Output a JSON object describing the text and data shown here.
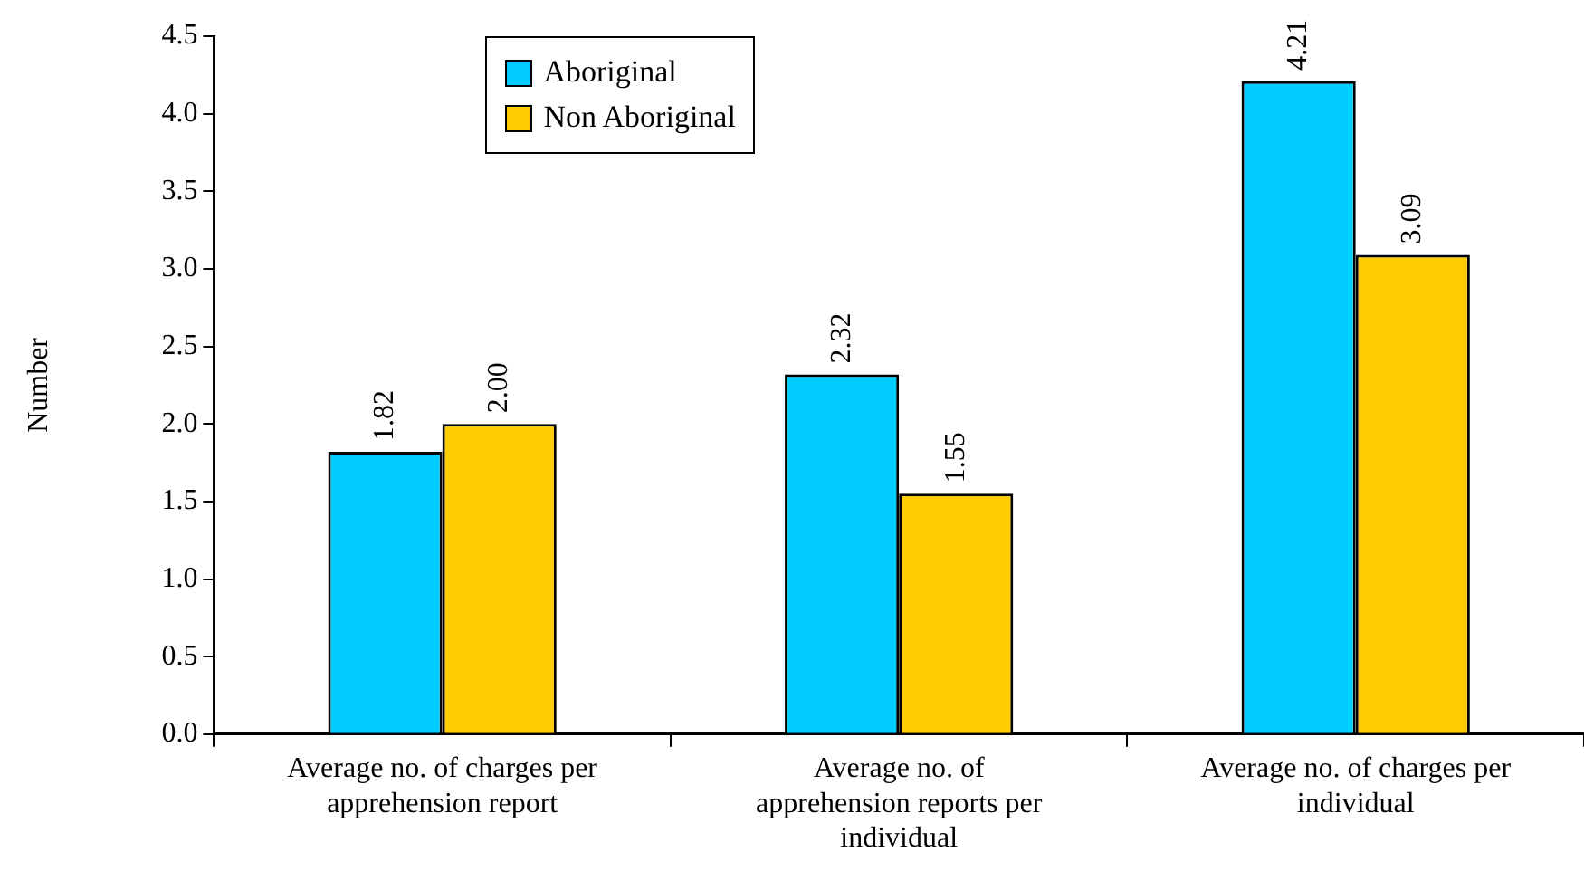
{
  "chart_data": {
    "type": "bar",
    "ylabel": "Number",
    "categories": [
      "Average no. of charges per apprehension report",
      "Average no. of apprehension reports per individual",
      "Average no. of charges per individual"
    ],
    "series": [
      {
        "name": "Aboriginal",
        "color": "#00ccff",
        "values": [
          1.82,
          2.32,
          4.21
        ],
        "value_labels": [
          "1.82",
          "2.32",
          "4.21"
        ]
      },
      {
        "name": "Non Aboriginal",
        "color": "#ffcc00",
        "values": [
          2.0,
          1.55,
          3.09
        ],
        "value_labels": [
          "2.00",
          "1.55",
          "3.09"
        ]
      }
    ],
    "ylim": [
      0,
      4.5
    ],
    "yticks": [
      {
        "value": 0,
        "label": "0.0"
      },
      {
        "value": 0.5,
        "label": "0.5"
      },
      {
        "value": 1,
        "label": "1.0"
      },
      {
        "value": 1.5,
        "label": "1.5"
      },
      {
        "value": 2,
        "label": "2.0"
      },
      {
        "value": 2.5,
        "label": "2.5"
      },
      {
        "value": 3,
        "label": "3.0"
      },
      {
        "value": 3.5,
        "label": "3.5"
      },
      {
        "value": 4,
        "label": "4.0"
      },
      {
        "value": 4.5,
        "label": "4.5"
      }
    ],
    "grid": false,
    "legend": "top"
  }
}
